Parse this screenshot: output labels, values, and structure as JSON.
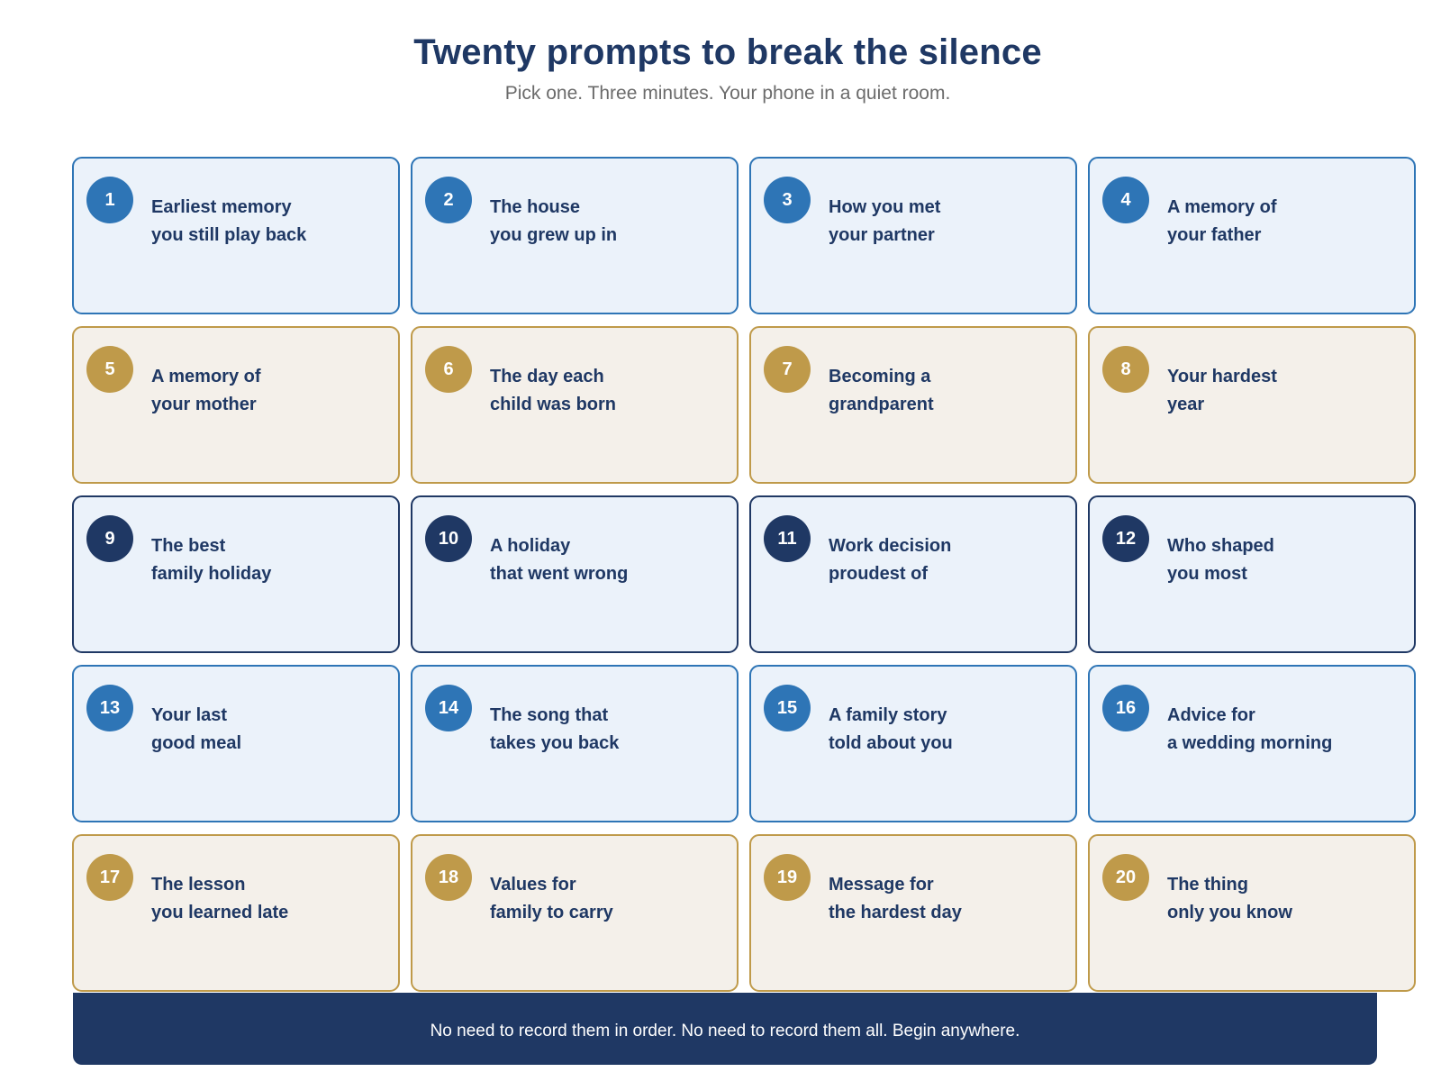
{
  "header": {
    "title": "Twenty prompts to break the silence",
    "subtitle": "Pick one. Three minutes. Your phone in a quiet room."
  },
  "colors": {
    "navy": "#1f3864",
    "blue": "#2e75b6",
    "gold": "#bf9a4a",
    "blue_fill": "#ebf2fa",
    "gold_fill": "#f4f0ea"
  },
  "prompts": [
    {
      "number": "1",
      "tone": "blue",
      "line1": "Earliest memory",
      "line2": "you still play back"
    },
    {
      "number": "2",
      "tone": "blue",
      "line1": "The house",
      "line2": "you grew up in"
    },
    {
      "number": "3",
      "tone": "blue",
      "line1": "How you met",
      "line2": "your partner"
    },
    {
      "number": "4",
      "tone": "blue",
      "line1": "A memory of",
      "line2": "your father"
    },
    {
      "number": "5",
      "tone": "gold",
      "line1": "A memory of",
      "line2": "your mother"
    },
    {
      "number": "6",
      "tone": "gold",
      "line1": "The day each",
      "line2": "child was born"
    },
    {
      "number": "7",
      "tone": "gold",
      "line1": "Becoming a",
      "line2": "grandparent"
    },
    {
      "number": "8",
      "tone": "gold",
      "line1": "Your hardest",
      "line2": "year"
    },
    {
      "number": "9",
      "tone": "navy",
      "line1": "The best",
      "line2": "family holiday"
    },
    {
      "number": "10",
      "tone": "navy",
      "line1": "A holiday",
      "line2": "that went wrong"
    },
    {
      "number": "11",
      "tone": "navy",
      "line1": "Work decision",
      "line2": "proudest of"
    },
    {
      "number": "12",
      "tone": "navy",
      "line1": "Who shaped",
      "line2": "you most"
    },
    {
      "number": "13",
      "tone": "blue",
      "line1": "Your last",
      "line2": "good meal"
    },
    {
      "number": "14",
      "tone": "blue",
      "line1": "The song that",
      "line2": "takes you back"
    },
    {
      "number": "15",
      "tone": "blue",
      "line1": "A family story",
      "line2": "told about you"
    },
    {
      "number": "16",
      "tone": "blue",
      "line1": "Advice for",
      "line2": "a wedding morning"
    },
    {
      "number": "17",
      "tone": "gold",
      "line1": "The lesson",
      "line2": "you learned late"
    },
    {
      "number": "18",
      "tone": "gold",
      "line1": "Values for",
      "line2": "family to carry"
    },
    {
      "number": "19",
      "tone": "gold",
      "line1": "Message for",
      "line2": "the hardest day"
    },
    {
      "number": "20",
      "tone": "gold",
      "line1": "The thing",
      "line2": "only you know"
    }
  ],
  "footer": {
    "text": "No need to record them in order. No need to record them all. Begin anywhere."
  }
}
